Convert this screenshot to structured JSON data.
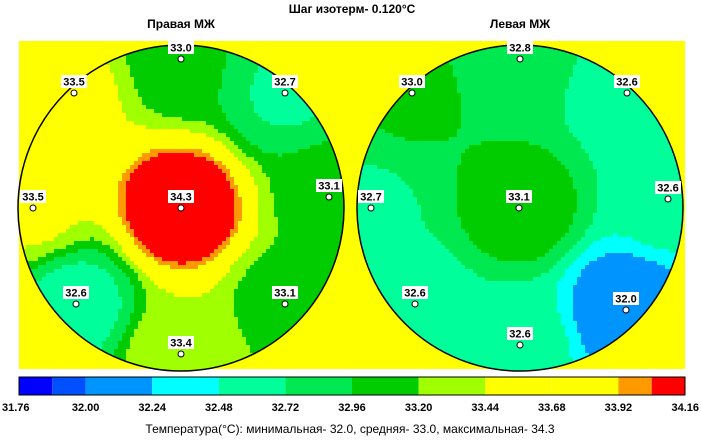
{
  "header": {
    "title": "Шаг изотерм- 0.120°С"
  },
  "panels": [
    {
      "title": "Правая МЖ",
      "points": [
        {
          "label": "33.0",
          "value": 33.0
        },
        {
          "label": "33.5",
          "value": 33.5
        },
        {
          "label": "32.7",
          "value": 32.7
        },
        {
          "label": "33.5",
          "value": 33.5
        },
        {
          "label": "34.3",
          "value": 34.3
        },
        {
          "label": "33.1",
          "value": 33.1
        },
        {
          "label": "32.6",
          "value": 32.6
        },
        {
          "label": "33.1",
          "value": 33.1
        },
        {
          "label": "33.4",
          "value": 33.4
        }
      ]
    },
    {
      "title": "Левая МЖ",
      "points": [
        {
          "label": "32.8",
          "value": 32.8
        },
        {
          "label": "33.0",
          "value": 33.0
        },
        {
          "label": "32.6",
          "value": 32.6
        },
        {
          "label": "32.7",
          "value": 32.7
        },
        {
          "label": "33.1",
          "value": 33.1
        },
        {
          "label": "32.6",
          "value": 32.6
        },
        {
          "label": "32.6",
          "value": 32.6
        },
        {
          "label": "32.0",
          "value": 32.0
        },
        {
          "label": "32.6",
          "value": 32.6
        }
      ]
    }
  ],
  "colors": {
    "background": "#ffff00",
    "outline": "#000000",
    "isotherm": "#000000"
  },
  "scale": {
    "ticks": [
      "31.76",
      "32.00",
      "32.24",
      "32.48",
      "32.72",
      "32.96",
      "33.20",
      "33.44",
      "33.68",
      "33.92",
      "34.16"
    ],
    "bins": [
      {
        "from": 31.76,
        "to": 31.88,
        "color": "#0000ff"
      },
      {
        "from": 31.88,
        "to": 32.0,
        "color": "#0050ff"
      },
      {
        "from": 32.0,
        "to": 32.24,
        "color": "#0094ff"
      },
      {
        "from": 32.24,
        "to": 32.48,
        "color": "#00ffff"
      },
      {
        "from": 32.48,
        "to": 32.72,
        "color": "#00ff9a"
      },
      {
        "from": 32.72,
        "to": 32.96,
        "color": "#00e84f"
      },
      {
        "from": 32.96,
        "to": 33.2,
        "color": "#00cc00"
      },
      {
        "from": 33.2,
        "to": 33.44,
        "color": "#a0ff00"
      },
      {
        "from": 33.44,
        "to": 33.68,
        "color": "#ffff00"
      },
      {
        "from": 33.68,
        "to": 33.92,
        "color": "#ffff00"
      },
      {
        "from": 33.92,
        "to": 34.04,
        "color": "#ff9900"
      },
      {
        "from": 34.04,
        "to": 34.16,
        "color": "#ff0000"
      }
    ]
  },
  "footer": {
    "caption": "Температура(°С): минимальная-  32.0,  средняя-  33.0,  максимальная-  34.3"
  },
  "chart_data": {
    "type": "heatmap",
    "title": "Шаг изотерм- 0.120°С",
    "panels": [
      "Правая МЖ",
      "Левая МЖ"
    ],
    "isotherm_step": 0.12,
    "value_range": [
      31.76,
      34.16
    ],
    "legend": "bottom",
    "series": [
      {
        "name": "Правая МЖ",
        "values": [
          33.0,
          33.5,
          32.7,
          33.5,
          34.3,
          33.1,
          32.6,
          33.1,
          33.4
        ]
      },
      {
        "name": "Левая МЖ",
        "values": [
          32.8,
          33.0,
          32.6,
          32.7,
          33.1,
          32.6,
          32.6,
          32.0,
          32.6
        ]
      }
    ],
    "summary": {
      "min": 32.0,
      "mean": 33.0,
      "max": 34.3
    }
  }
}
